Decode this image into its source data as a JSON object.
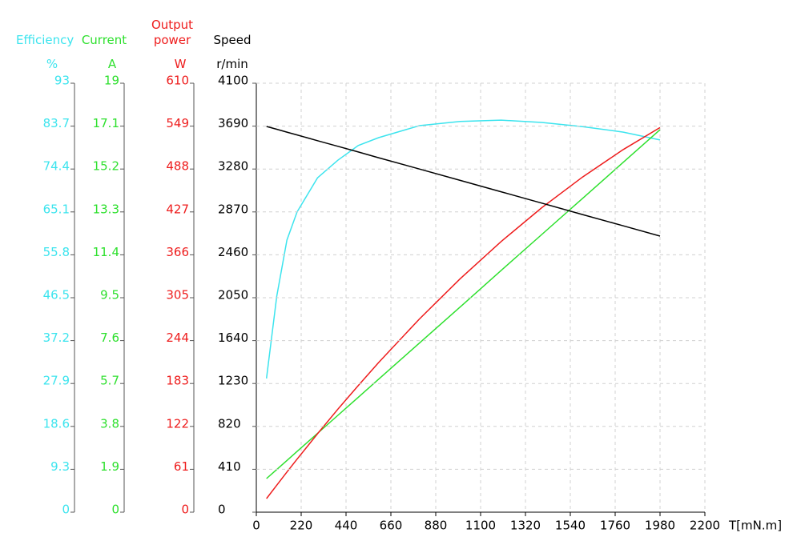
{
  "chart_data": {
    "type": "line",
    "xlabel": "T[mN.m]",
    "xlim": [
      0,
      2200
    ],
    "xticks": [
      0,
      220,
      440,
      660,
      880,
      1100,
      1320,
      1540,
      1760,
      1980,
      2200
    ],
    "grid": true,
    "x": [
      50,
      100,
      150,
      200,
      300,
      400,
      500,
      600,
      800,
      1000,
      1200,
      1400,
      1600,
      1800,
      1980
    ],
    "series": [
      {
        "name": "Efficiency",
        "unit": "%",
        "color": "#3ce4ee",
        "ylim": [
          0,
          93
        ],
        "yticks": [
          0,
          9.3,
          18.6,
          27.9,
          37.2,
          46.5,
          55.8,
          65.1,
          74.4,
          83.7,
          93
        ],
        "values": [
          29.0,
          46.8,
          59.0,
          65.1,
          72.5,
          76.3,
          79.5,
          81.2,
          83.8,
          84.7,
          85.0,
          84.5,
          83.6,
          82.4,
          80.7
        ]
      },
      {
        "name": "Current",
        "unit": "A",
        "color": "#2ee02e",
        "ylim": [
          0,
          19
        ],
        "yticks": [
          0,
          1.9,
          3.8,
          5.7,
          7.6,
          9.5,
          11.4,
          13.3,
          15.2,
          17.1,
          19
        ],
        "values": [
          1.49,
          1.89,
          2.29,
          2.69,
          3.49,
          4.29,
          5.09,
          5.89,
          7.49,
          9.09,
          10.7,
          12.3,
          13.9,
          15.5,
          16.94
        ]
      },
      {
        "name": "Output power",
        "unit": "W",
        "color": "#ee1c1c",
        "ylim": [
          0,
          610
        ],
        "yticks": [
          0,
          61,
          122,
          183,
          244,
          305,
          366,
          427,
          488,
          549,
          610
        ],
        "values": [
          19.3,
          38.3,
          57.1,
          75.5,
          111.5,
          146.5,
          180.2,
          212.8,
          274.7,
          332.0,
          384.8,
          433.0,
          476.6,
          515.8,
          547.0
        ]
      },
      {
        "name": "Speed",
        "unit": "r/min",
        "color": "#000000",
        "ylim": [
          0,
          4100
        ],
        "yticks": [
          0,
          410,
          820,
          1230,
          1640,
          2050,
          2460,
          2870,
          3280,
          3690,
          4100
        ],
        "values": [
          3687,
          3660,
          3633,
          3606,
          3551,
          3497,
          3443,
          3388,
          3280,
          3171,
          3063,
          2954,
          2845,
          2737,
          2639
        ]
      }
    ]
  }
}
